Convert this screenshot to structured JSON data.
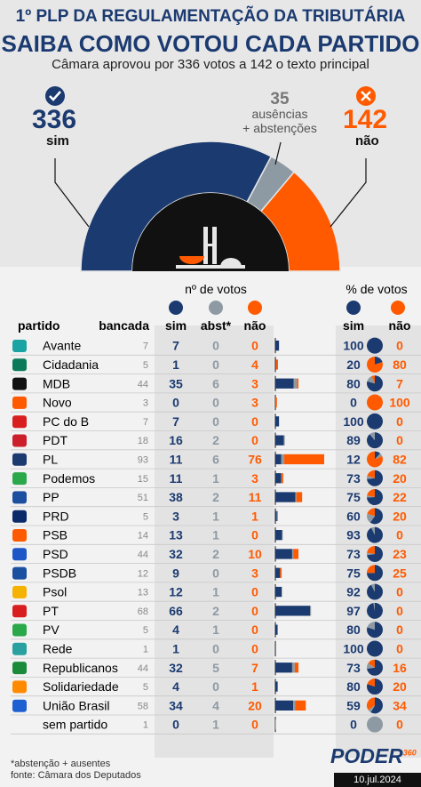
{
  "header": {
    "title1": "1º PLP DA REGULAMENTAÇÃO DA TRIBUTÁRIA",
    "title2": "SAIBA COMO VOTOU CADA PARTIDO",
    "subtitle": "Câmara aprovou por 336 votos a 142 o texto principal",
    "sim_total": "336",
    "sim_label": "sim",
    "nao_total": "142",
    "nao_label": "não",
    "abs_total": "35",
    "abs_label1": "ausências",
    "abs_label2": "+ abstenções"
  },
  "colors": {
    "sim": "#1b3a70",
    "abst": "#8e9aa3",
    "nao": "#ff5a00"
  },
  "chart_data": [
    {
      "type": "pie",
      "subtype": "half-donut",
      "categories": [
        "sim",
        "ausências + abstenções",
        "não"
      ],
      "values": [
        336,
        35,
        142
      ]
    },
    {
      "type": "table",
      "columns": {
        "partido": "partido",
        "bancada": "bancada",
        "group_votes": "nº de votos",
        "group_pct": "% de votos",
        "sim": "sim",
        "abst": "abst*",
        "nao": "não"
      },
      "rows": [
        {
          "partido": "Avante",
          "bancada": 7,
          "sim": 7,
          "abst": 0,
          "nao": 0,
          "pct_sim": 100,
          "pct_nao": 0
        },
        {
          "partido": "Cidadania",
          "bancada": 5,
          "sim": 1,
          "abst": 0,
          "nao": 4,
          "pct_sim": 20,
          "pct_nao": 80
        },
        {
          "partido": "MDB",
          "bancada": 44,
          "sim": 35,
          "abst": 6,
          "nao": 3,
          "pct_sim": 80,
          "pct_nao": 7
        },
        {
          "partido": "Novo",
          "bancada": 3,
          "sim": 0,
          "abst": 0,
          "nao": 3,
          "pct_sim": 0,
          "pct_nao": 100
        },
        {
          "partido": "PC do B",
          "bancada": 7,
          "sim": 7,
          "abst": 0,
          "nao": 0,
          "pct_sim": 100,
          "pct_nao": 0
        },
        {
          "partido": "PDT",
          "bancada": 18,
          "sim": 16,
          "abst": 2,
          "nao": 0,
          "pct_sim": 89,
          "pct_nao": 0
        },
        {
          "partido": "PL",
          "bancada": 93,
          "sim": 11,
          "abst": 6,
          "nao": 76,
          "pct_sim": 12,
          "pct_nao": 82
        },
        {
          "partido": "Podemos",
          "bancada": 15,
          "sim": 11,
          "abst": 1,
          "nao": 3,
          "pct_sim": 73,
          "pct_nao": 20
        },
        {
          "partido": "PP",
          "bancada": 51,
          "sim": 38,
          "abst": 2,
          "nao": 11,
          "pct_sim": 75,
          "pct_nao": 22
        },
        {
          "partido": "PRD",
          "bancada": 5,
          "sim": 3,
          "abst": 1,
          "nao": 1,
          "pct_sim": 60,
          "pct_nao": 20
        },
        {
          "partido": "PSB",
          "bancada": 14,
          "sim": 13,
          "abst": 1,
          "nao": 0,
          "pct_sim": 93,
          "pct_nao": 0
        },
        {
          "partido": "PSD",
          "bancada": 44,
          "sim": 32,
          "abst": 2,
          "nao": 10,
          "pct_sim": 73,
          "pct_nao": 23
        },
        {
          "partido": "PSDB",
          "bancada": 12,
          "sim": 9,
          "abst": 0,
          "nao": 3,
          "pct_sim": 75,
          "pct_nao": 25
        },
        {
          "partido": "Psol",
          "bancada": 13,
          "sim": 12,
          "abst": 1,
          "nao": 0,
          "pct_sim": 92,
          "pct_nao": 0
        },
        {
          "partido": "PT",
          "bancada": 68,
          "sim": 66,
          "abst": 2,
          "nao": 0,
          "pct_sim": 97,
          "pct_nao": 0
        },
        {
          "partido": "PV",
          "bancada": 5,
          "sim": 4,
          "abst": 1,
          "nao": 0,
          "pct_sim": 80,
          "pct_nao": 0
        },
        {
          "partido": "Rede",
          "bancada": 1,
          "sim": 1,
          "abst": 0,
          "nao": 0,
          "pct_sim": 100,
          "pct_nao": 0
        },
        {
          "partido": "Republicanos",
          "bancada": 44,
          "sim": 32,
          "abst": 5,
          "nao": 7,
          "pct_sim": 73,
          "pct_nao": 16
        },
        {
          "partido": "Solidariedade",
          "bancada": 5,
          "sim": 4,
          "abst": 0,
          "nao": 1,
          "pct_sim": 80,
          "pct_nao": 20
        },
        {
          "partido": "União Brasil",
          "bancada": 58,
          "sim": 34,
          "abst": 4,
          "nao": 20,
          "pct_sim": 59,
          "pct_nao": 34
        },
        {
          "partido": "sem partido",
          "bancada": 1,
          "sim": 0,
          "abst": 1,
          "nao": 0,
          "pct_sim": 0,
          "pct_nao": 0
        }
      ]
    }
  ],
  "footer": {
    "note": "*abstenção + ausentes",
    "source": "fonte: Câmara dos Deputados",
    "brand": "PODER",
    "brand_sub": "360",
    "date": "10.jul.2024"
  }
}
